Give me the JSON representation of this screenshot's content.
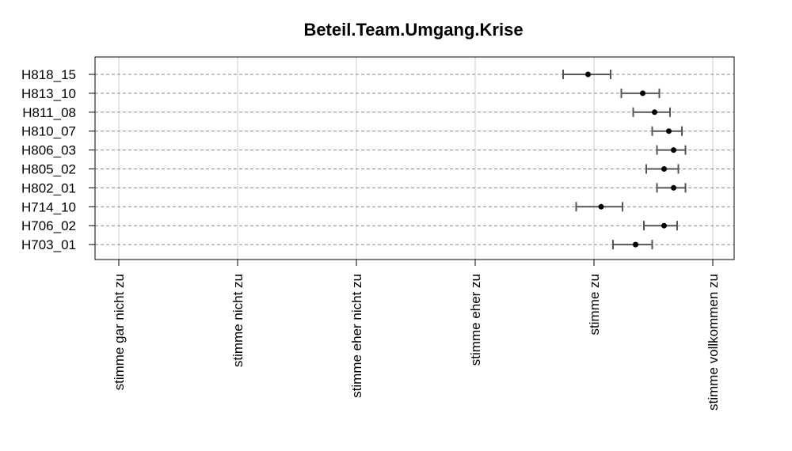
{
  "chart_data": {
    "type": "dotplot-errorbar",
    "title": "Beteil.Team.Umgang.Krise",
    "xlabel": "",
    "ylabel": "",
    "x_ticks": [
      {
        "value": 1,
        "label": "stimme gar nicht zu"
      },
      {
        "value": 2,
        "label": "stimme nicht zu"
      },
      {
        "value": 3,
        "label": "stimme eher nicht zu"
      },
      {
        "value": 4,
        "label": "stimme eher zu"
      },
      {
        "value": 5,
        "label": "stimme zu"
      },
      {
        "value": 6,
        "label": "stimme vollkommen zu"
      }
    ],
    "xlim": [
      0.6,
      6.2
    ],
    "grid": true,
    "categories": [
      "H818_15",
      "H813_10",
      "H811_08",
      "H810_07",
      "H806_03",
      "H805_02",
      "H802_01",
      "H714_10",
      "H706_02",
      "H703_01"
    ],
    "values": [
      4.95,
      5.41,
      5.51,
      5.63,
      5.67,
      5.59,
      5.67,
      5.06,
      5.59,
      5.35
    ],
    "lower": [
      4.74,
      5.23,
      5.33,
      5.49,
      5.53,
      5.44,
      5.53,
      4.85,
      5.42,
      5.16
    ],
    "upper": [
      5.14,
      5.55,
      5.64,
      5.74,
      5.77,
      5.71,
      5.77,
      5.24,
      5.7,
      5.49
    ]
  }
}
